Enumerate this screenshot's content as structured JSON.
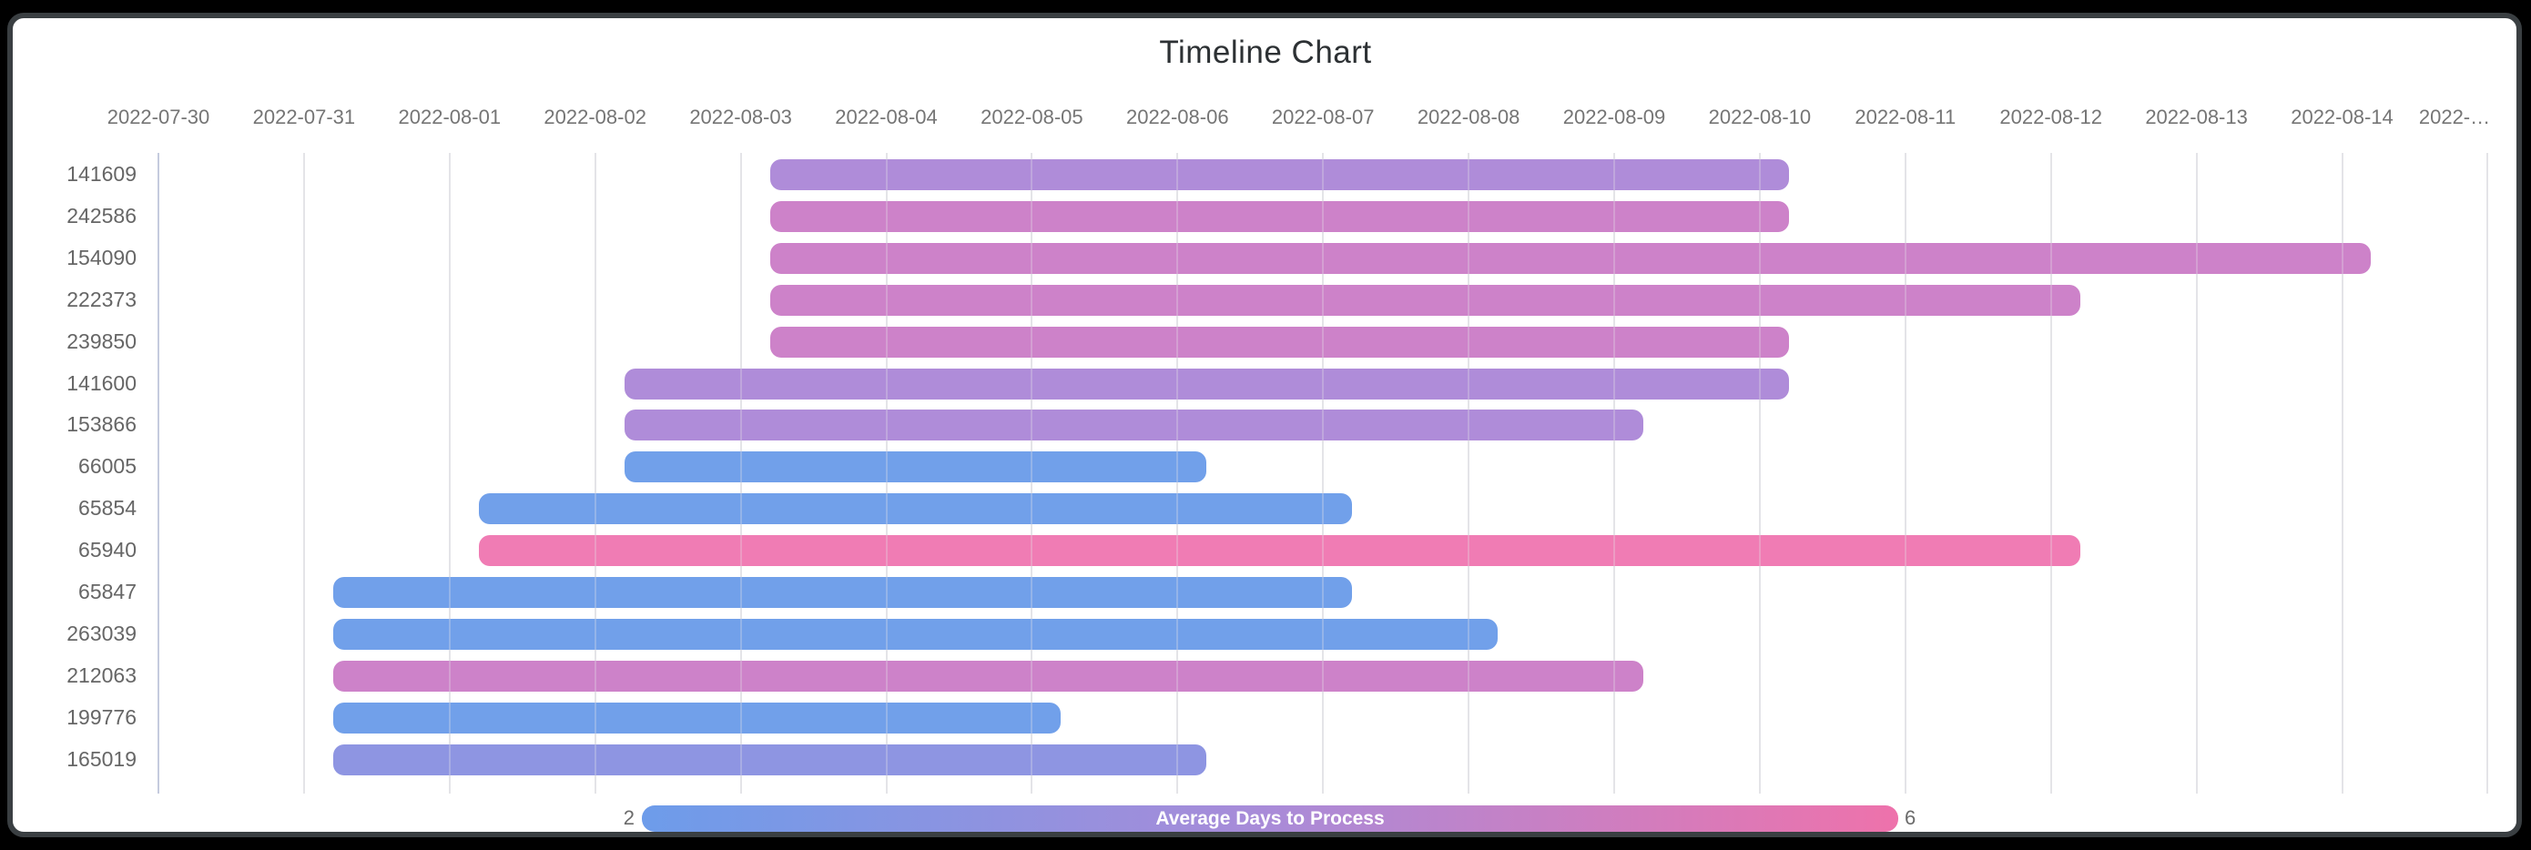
{
  "frame": {
    "background_color": "#000000",
    "card_border_color": "#3a3f42",
    "card_background_color": "#ffffff"
  },
  "chart_data": {
    "type": "bar",
    "variant": "horizontal-timeline-gantt",
    "title": "Timeline Chart",
    "x_axis": {
      "position": "top",
      "grid": true,
      "range": [
        "2022-07-30",
        "2022-08-15"
      ],
      "ticks": [
        "2022-07-30",
        "2022-07-31",
        "2022-08-01",
        "2022-08-02",
        "2022-08-03",
        "2022-08-04",
        "2022-08-05",
        "2022-08-06",
        "2022-08-07",
        "2022-08-08",
        "2022-08-09",
        "2022-08-10",
        "2022-08-11",
        "2022-08-12",
        "2022-08-13",
        "2022-08-14",
        "2022-…"
      ],
      "last_tick_truncated_from": "2022-08-15",
      "first_gridline_color": "#c5cbde",
      "gridline_color": "#e4e4e8"
    },
    "y_axis": {
      "categories": [
        "141609",
        "242586",
        "154090",
        "222373",
        "239850",
        "141600",
        "153866",
        "66005",
        "65854",
        "65940",
        "65847",
        "263039",
        "212063",
        "199776",
        "165019"
      ]
    },
    "palette": {
      "blue": "#71a0ea",
      "periwinkle": "#8e95e2",
      "purple": "#af8cd9",
      "orchid": "#cd82c9",
      "pink": "#f07cb4"
    },
    "tasks": [
      {
        "label": "141609",
        "start": "2022-08-03",
        "end": "2022-08-10",
        "duration_days": 7,
        "start_day": 4.2,
        "end_day": 11.2,
        "color": "#af8cd9"
      },
      {
        "label": "242586",
        "start": "2022-08-03",
        "end": "2022-08-10",
        "duration_days": 7,
        "start_day": 4.2,
        "end_day": 11.2,
        "color": "#cd82c9"
      },
      {
        "label": "154090",
        "start": "2022-08-03",
        "end": "2022-08-14",
        "duration_days": 11,
        "start_day": 4.2,
        "end_day": 15.2,
        "color": "#cd82c9"
      },
      {
        "label": "222373",
        "start": "2022-08-03",
        "end": "2022-08-12",
        "duration_days": 9,
        "start_day": 4.2,
        "end_day": 13.2,
        "color": "#cd82c9"
      },
      {
        "label": "239850",
        "start": "2022-08-03",
        "end": "2022-08-10",
        "duration_days": 7,
        "start_day": 4.2,
        "end_day": 11.2,
        "color": "#cd82c9"
      },
      {
        "label": "141600",
        "start": "2022-08-02",
        "end": "2022-08-10",
        "duration_days": 8,
        "start_day": 3.2,
        "end_day": 11.2,
        "color": "#af8cd9"
      },
      {
        "label": "153866",
        "start": "2022-08-02",
        "end": "2022-08-09",
        "duration_days": 7,
        "start_day": 3.2,
        "end_day": 10.2,
        "color": "#af8cd9"
      },
      {
        "label": "66005",
        "start": "2022-08-02",
        "end": "2022-08-06",
        "duration_days": 4,
        "start_day": 3.2,
        "end_day": 7.2,
        "color": "#71a0ea"
      },
      {
        "label": "65854",
        "start": "2022-08-01",
        "end": "2022-08-07",
        "duration_days": 6,
        "start_day": 2.2,
        "end_day": 8.2,
        "color": "#71a0ea"
      },
      {
        "label": "65940",
        "start": "2022-08-01",
        "end": "2022-08-12",
        "duration_days": 11,
        "start_day": 2.2,
        "end_day": 13.2,
        "color": "#f07cb4"
      },
      {
        "label": "65847",
        "start": "2022-07-31",
        "end": "2022-08-07",
        "duration_days": 7,
        "start_day": 1.2,
        "end_day": 8.2,
        "color": "#71a0ea"
      },
      {
        "label": "263039",
        "start": "2022-07-31",
        "end": "2022-08-08",
        "duration_days": 8,
        "start_day": 1.2,
        "end_day": 9.2,
        "color": "#71a0ea"
      },
      {
        "label": "212063",
        "start": "2022-07-31",
        "end": "2022-08-09",
        "duration_days": 9,
        "start_day": 1.2,
        "end_day": 10.2,
        "color": "#cd82c9"
      },
      {
        "label": "199776",
        "start": "2022-07-31",
        "end": "2022-08-05",
        "duration_days": 5,
        "start_day": 1.2,
        "end_day": 6.2,
        "color": "#71a0ea"
      },
      {
        "label": "165019",
        "start": "2022-07-31",
        "end": "2022-08-06",
        "duration_days": 6,
        "start_day": 1.2,
        "end_day": 7.2,
        "color": "#8e95e2"
      }
    ],
    "legend": {
      "position": "bottom",
      "label": "Average Days to Process",
      "min": "2",
      "max": "6",
      "gradient": [
        "#6d9cea",
        "#a98bd8",
        "#ee72ab"
      ]
    }
  }
}
